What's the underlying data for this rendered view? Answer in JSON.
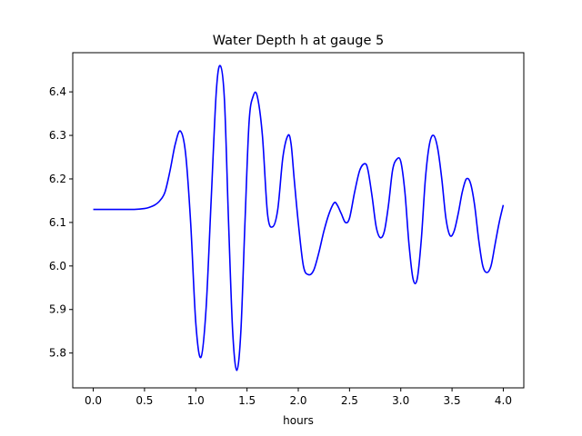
{
  "chart_data": {
    "type": "line",
    "title": "Water Depth h at gauge 5",
    "xlabel": "hours",
    "ylabel": "",
    "xlim": [
      -0.2,
      4.2
    ],
    "ylim": [
      5.72,
      6.49
    ],
    "xticks": [
      0.0,
      0.5,
      1.0,
      1.5,
      2.0,
      2.5,
      3.0,
      3.5,
      4.0
    ],
    "xtick_labels": [
      "0.0",
      "0.5",
      "1.0",
      "1.5",
      "2.0",
      "2.5",
      "3.0",
      "3.5",
      "4.0"
    ],
    "yticks": [
      5.8,
      5.9,
      6.0,
      6.1,
      6.2,
      6.3,
      6.4
    ],
    "ytick_labels": [
      "5.8",
      "5.9",
      "6.0",
      "6.1",
      "6.2",
      "6.3",
      "6.4"
    ],
    "grid": false,
    "series": [
      {
        "color": "#0000ff",
        "x": [
          0.0,
          0.2,
          0.4,
          0.5,
          0.55,
          0.6,
          0.65,
          0.7,
          0.75,
          0.8,
          0.85,
          0.9,
          0.95,
          1.0,
          1.05,
          1.1,
          1.15,
          1.2,
          1.24,
          1.28,
          1.32,
          1.36,
          1.4,
          1.44,
          1.48,
          1.52,
          1.56,
          1.6,
          1.65,
          1.7,
          1.75,
          1.8,
          1.85,
          1.9,
          1.93,
          1.96,
          2.0,
          2.05,
          2.1,
          2.15,
          2.2,
          2.25,
          2.3,
          2.35,
          2.38,
          2.42,
          2.46,
          2.5,
          2.55,
          2.6,
          2.65,
          2.68,
          2.72,
          2.76,
          2.8,
          2.84,
          2.88,
          2.92,
          2.96,
          3.0,
          3.04,
          3.08,
          3.12,
          3.16,
          3.2,
          3.24,
          3.28,
          3.32,
          3.36,
          3.4,
          3.44,
          3.48,
          3.52,
          3.56,
          3.6,
          3.64,
          3.68,
          3.72,
          3.76,
          3.8,
          3.84,
          3.88,
          3.92,
          3.96,
          4.0
        ],
        "y": [
          6.13,
          6.13,
          6.13,
          6.132,
          6.135,
          6.14,
          6.15,
          6.17,
          6.22,
          6.28,
          6.31,
          6.26,
          6.1,
          5.87,
          5.79,
          5.9,
          6.15,
          6.4,
          6.46,
          6.38,
          6.1,
          5.85,
          5.76,
          5.85,
          6.1,
          6.33,
          6.39,
          6.39,
          6.3,
          6.12,
          6.09,
          6.13,
          6.25,
          6.3,
          6.28,
          6.2,
          6.1,
          6.0,
          5.98,
          5.99,
          6.03,
          6.08,
          6.12,
          6.145,
          6.14,
          6.12,
          6.1,
          6.11,
          6.17,
          6.22,
          6.235,
          6.22,
          6.16,
          6.09,
          6.065,
          6.08,
          6.14,
          6.22,
          6.245,
          6.24,
          6.17,
          6.05,
          5.97,
          5.97,
          6.06,
          6.2,
          6.28,
          6.3,
          6.27,
          6.2,
          6.11,
          6.07,
          6.08,
          6.12,
          6.17,
          6.2,
          6.19,
          6.14,
          6.06,
          6.0,
          5.985,
          6.0,
          6.05,
          6.1,
          6.14
        ]
      }
    ]
  }
}
